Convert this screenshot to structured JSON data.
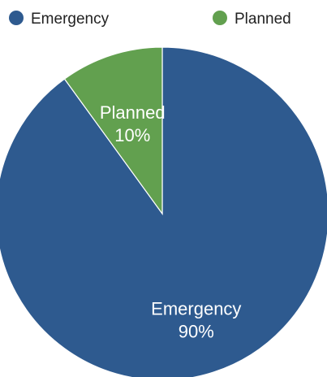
{
  "chart_data": {
    "type": "pie",
    "title": "",
    "legend_position": "top",
    "slices": [
      {
        "name": "Emergency",
        "value": 90,
        "label": "90%",
        "color": "#2e5a8f"
      },
      {
        "name": "Planned",
        "value": 10,
        "label": "10%",
        "color": "#62a04f"
      }
    ]
  }
}
